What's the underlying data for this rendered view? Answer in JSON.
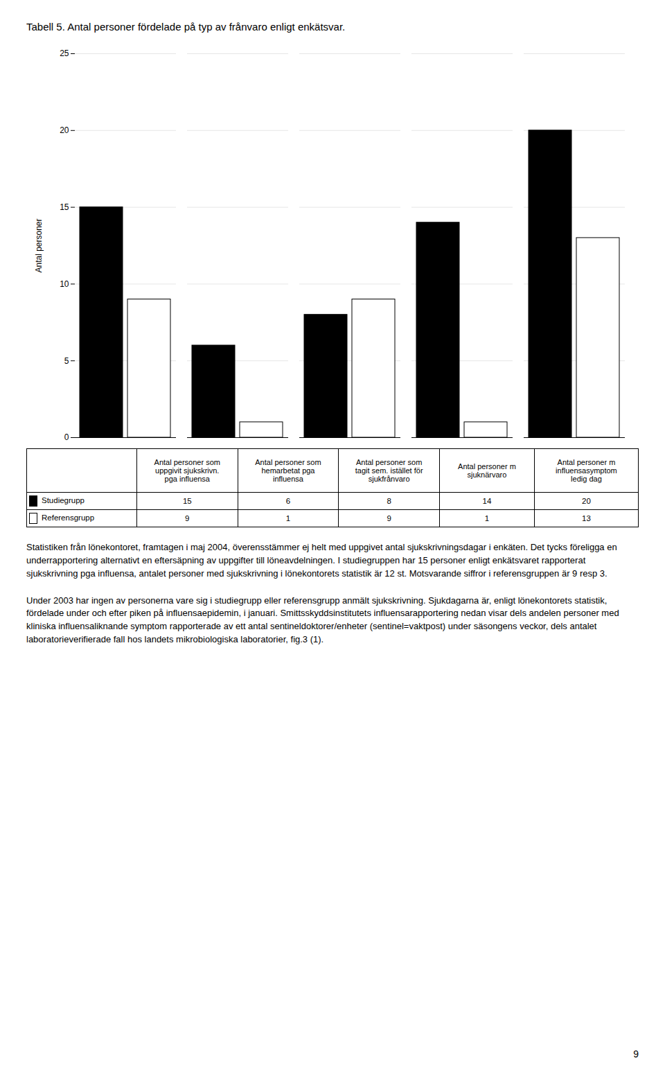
{
  "chart_data": {
    "type": "bar",
    "title": "Tabell 5. Antal personer fördelade på typ av frånvaro enligt enkätsvar.",
    "ylabel": "Antal personer",
    "categories": [
      "Antal personer som\nuppgivit sjukskrivn.\npga influensa",
      "Antal personer som\nhemarbetat pga\ninfluensa",
      "Antal personer som\ntagit sem. istället för\nsjukfrånvaro",
      "Antal personer m\nsjuknärvaro",
      "Antal personer m\ninfluensasymptom\nledig dag"
    ],
    "series": [
      {
        "name": "Studiegrupp",
        "color": "#000000",
        "values": [
          15,
          6,
          8,
          14,
          20
        ]
      },
      {
        "name": "Referensgrupp",
        "color": "#ffffff",
        "values": [
          9,
          1,
          9,
          1,
          13
        ]
      }
    ],
    "ylim": [
      0,
      25
    ],
    "yticks": [
      0,
      5,
      10,
      15,
      20,
      25
    ],
    "grid": true,
    "legend": "bottom",
    "annotations": [
      "Statistiken från lönekontoret, framtagen i maj 2004, överensstämmer ej helt med uppgivet antal sjukskrivningsdagar i enkäten. Det tycks föreligga en underrapportering alternativt en eftersäpning av uppgifter till löneavdelningen. I studiegruppen har 15 personer enligt enkätsvaret rapporterat sjukskrivning pga influensa, antalet personer med sjukskrivning i lönekontorets statistik är 12 st. Motsvarande siffror i referensgruppen är 9 resp 3.",
      "Under 2003 har ingen av personerna vare sig i studiegrupp eller referensgrupp anmält sjukskrivning. Sjukdagarna är, enligt lönekontorets statistik, fördelade under och efter piken på influensaepidemin, i januari. Smittsskyddsinstitutets influensarapportering nedan visar dels andelen personer med kliniska influensaliknande symptom rapporterade av ett antal sentineldoktorer/enheter (sentinel=vaktpost) under säsongens veckor, dels antalet laboratorieverifierade fall hos landets mikrobiologiska laboratorier, fig.3 (1).",
      "9"
    ]
  }
}
